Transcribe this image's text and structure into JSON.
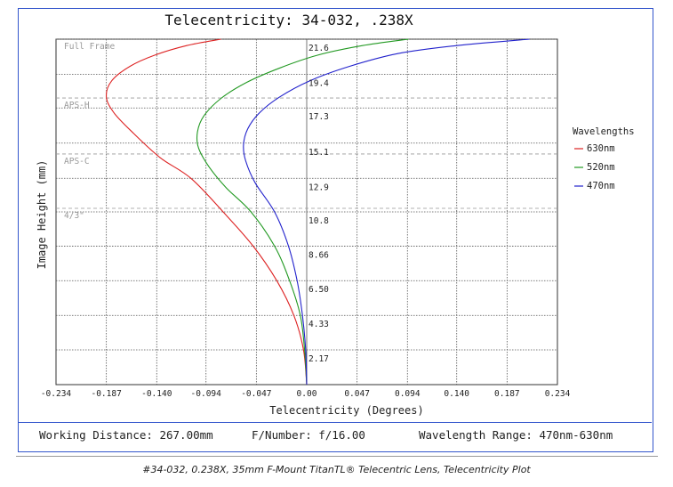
{
  "chart_data": {
    "type": "line",
    "title": "Telecentricity: 34-032, .238X",
    "xlabel": "Telecentricity (Degrees)",
    "ylabel": "Image Height (mm)",
    "xlim": [
      -0.234,
      0.234
    ],
    "ylim": [
      0,
      21.6
    ],
    "x_ticks": [
      "-0.234",
      "-0.187",
      "-0.140",
      "-0.094",
      "-0.047",
      "0.00",
      "0.047",
      "0.094",
      "0.140",
      "0.187",
      "0.234"
    ],
    "x_tick_values": [
      -0.234,
      -0.187,
      -0.14,
      -0.094,
      -0.047,
      0.0,
      0.047,
      0.094,
      0.14,
      0.187,
      0.234
    ],
    "y_ticks": [
      "2.17",
      "4.33",
      "6.50",
      "8.66",
      "10.8",
      "12.9",
      "15.1",
      "17.3",
      "19.4",
      "21.6"
    ],
    "y_tick_values": [
      2.17,
      4.33,
      6.5,
      8.66,
      10.8,
      12.9,
      15.1,
      17.3,
      19.4,
      21.6
    ],
    "legend_title": "Wavelengths",
    "legend_position": "right",
    "grid": true,
    "sensor_lines": [
      {
        "label": "Full Frame",
        "y": 21.6
      },
      {
        "label": "APS-H",
        "y": 17.7
      },
      {
        "label": "APS-C",
        "y": 14.2
      },
      {
        "label": "4/3\"",
        "y": 10.8
      }
    ],
    "series": [
      {
        "name": "630nm",
        "color": "#dd2222",
        "x": [
          0,
          -0.003,
          -0.012,
          -0.028,
          -0.05,
          -0.078,
          -0.108,
          -0.137,
          -0.163,
          -0.18,
          -0.187,
          -0.182,
          -0.165,
          -0.142,
          -0.112,
          -0.08
        ],
        "y": [
          0,
          2.17,
          4.33,
          6.5,
          8.66,
          10.8,
          12.9,
          14.2,
          15.8,
          17.0,
          18.0,
          19.0,
          19.9,
          20.6,
          21.2,
          21.6
        ]
      },
      {
        "name": "520nm",
        "color": "#229922",
        "x": [
          0,
          -0.002,
          -0.006,
          -0.016,
          -0.03,
          -0.052,
          -0.075,
          -0.091,
          -0.101,
          -0.102,
          -0.096,
          -0.08,
          -0.056,
          -0.025,
          0.01,
          0.052,
          0.095
        ],
        "y": [
          0,
          2.17,
          4.33,
          6.5,
          8.66,
          10.8,
          12.3,
          13.6,
          14.8,
          15.8,
          16.8,
          17.9,
          18.9,
          19.8,
          20.6,
          21.2,
          21.6
        ]
      },
      {
        "name": "470nm",
        "color": "#2222cc",
        "x": [
          0,
          -0.001,
          -0.004,
          -0.009,
          -0.017,
          -0.03,
          -0.048,
          -0.057,
          -0.059,
          -0.055,
          -0.044,
          -0.025,
          0.003,
          0.04,
          0.085,
          0.14,
          0.208
        ],
        "y": [
          0,
          2.17,
          4.33,
          6.5,
          8.66,
          10.8,
          12.6,
          14.0,
          15.0,
          16.0,
          17.0,
          18.0,
          19.0,
          19.9,
          20.7,
          21.2,
          21.6
        ]
      }
    ]
  },
  "info": {
    "working_distance": "Working Distance: 267.00mm",
    "f_number": "F/Number: f/16.00",
    "wavelength_range": "Wavelength Range: 470nm-630nm"
  },
  "caption": "#34-032, 0.238X, 35mm F-Mount TitanTL® Telecentric Lens, Telecentricity Plot"
}
